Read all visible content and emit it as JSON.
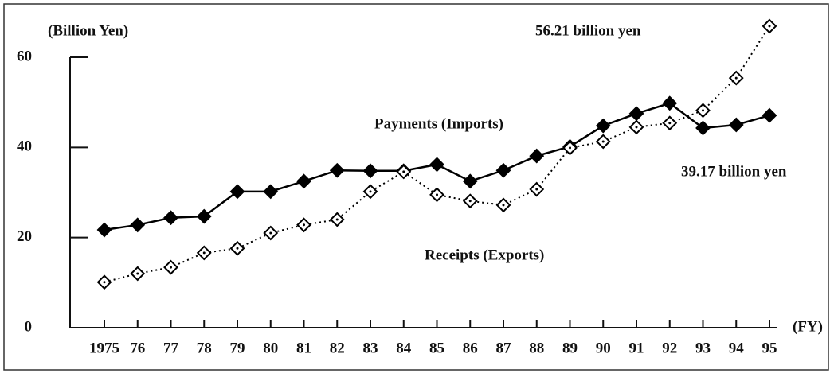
{
  "chart_data": {
    "type": "line",
    "y_label": "(Billion Yen)",
    "x_label": "(FY)",
    "categories": [
      "1975",
      "76",
      "77",
      "78",
      "79",
      "80",
      "81",
      "82",
      "83",
      "84",
      "85",
      "86",
      "87",
      "88",
      "89",
      "90",
      "91",
      "92",
      "93",
      "94",
      "95"
    ],
    "series": [
      {
        "name": "Payments (Imports)",
        "color": "#000000",
        "style": "solid",
        "marker": "filled-diamond",
        "values": [
          21.7,
          22.8,
          24.4,
          24.7,
          30.2,
          30.2,
          32.5,
          34.9,
          34.8,
          34.8,
          36.2,
          32.5,
          34.9,
          38.1,
          40.2,
          44.8,
          47.5,
          49.8,
          44.3,
          45.0,
          47.1
        ]
      },
      {
        "name": "Receipts (Exports)",
        "color": "#000000",
        "style": "dotted",
        "marker": "open-diamond",
        "values": [
          10.1,
          12.0,
          13.4,
          16.6,
          17.6,
          21.0,
          22.8,
          24.0,
          30.2,
          34.6,
          29.5,
          28.1,
          27.2,
          30.7,
          39.9,
          41.3,
          44.5,
          45.4,
          48.2,
          55.4,
          66.9
        ]
      }
    ],
    "annotations": [
      "56.21 billion yen",
      "39.17 billion yen"
    ],
    "ylim": [
      0,
      68
    ],
    "yticks": [
      0,
      20,
      40,
      60
    ],
    "grid": false
  }
}
